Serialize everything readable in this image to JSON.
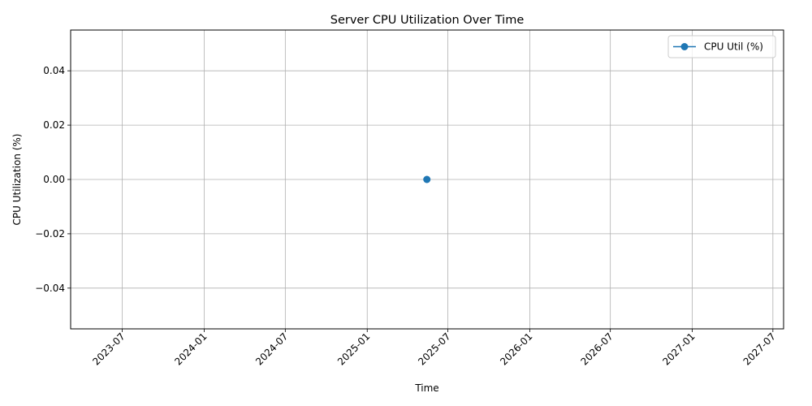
{
  "chart_data": {
    "type": "line",
    "title": "Server CPU Utilization Over Time",
    "xlabel": "Time",
    "ylabel": "CPU Utilization (%)",
    "x_axis_type": "date",
    "xlim": [
      "2023-03-07",
      "2027-07-25"
    ],
    "ylim": [
      -0.055,
      0.055
    ],
    "xticks": [
      "2023-07",
      "2024-01",
      "2024-07",
      "2025-01",
      "2025-07",
      "2026-01",
      "2026-07",
      "2027-01",
      "2027-07"
    ],
    "yticks": [
      -0.04,
      -0.02,
      0.0,
      0.02,
      0.04
    ],
    "ytick_labels": [
      "−0.04",
      "−0.02",
      "0.00",
      "0.02",
      "0.04"
    ],
    "grid": true,
    "legend_position": "top-right",
    "series": [
      {
        "name": "CPU Util (%)",
        "color": "#1f77b4",
        "marker": "circle",
        "points": [
          {
            "x": "2025-05-15",
            "y": 0.0
          }
        ]
      }
    ]
  }
}
